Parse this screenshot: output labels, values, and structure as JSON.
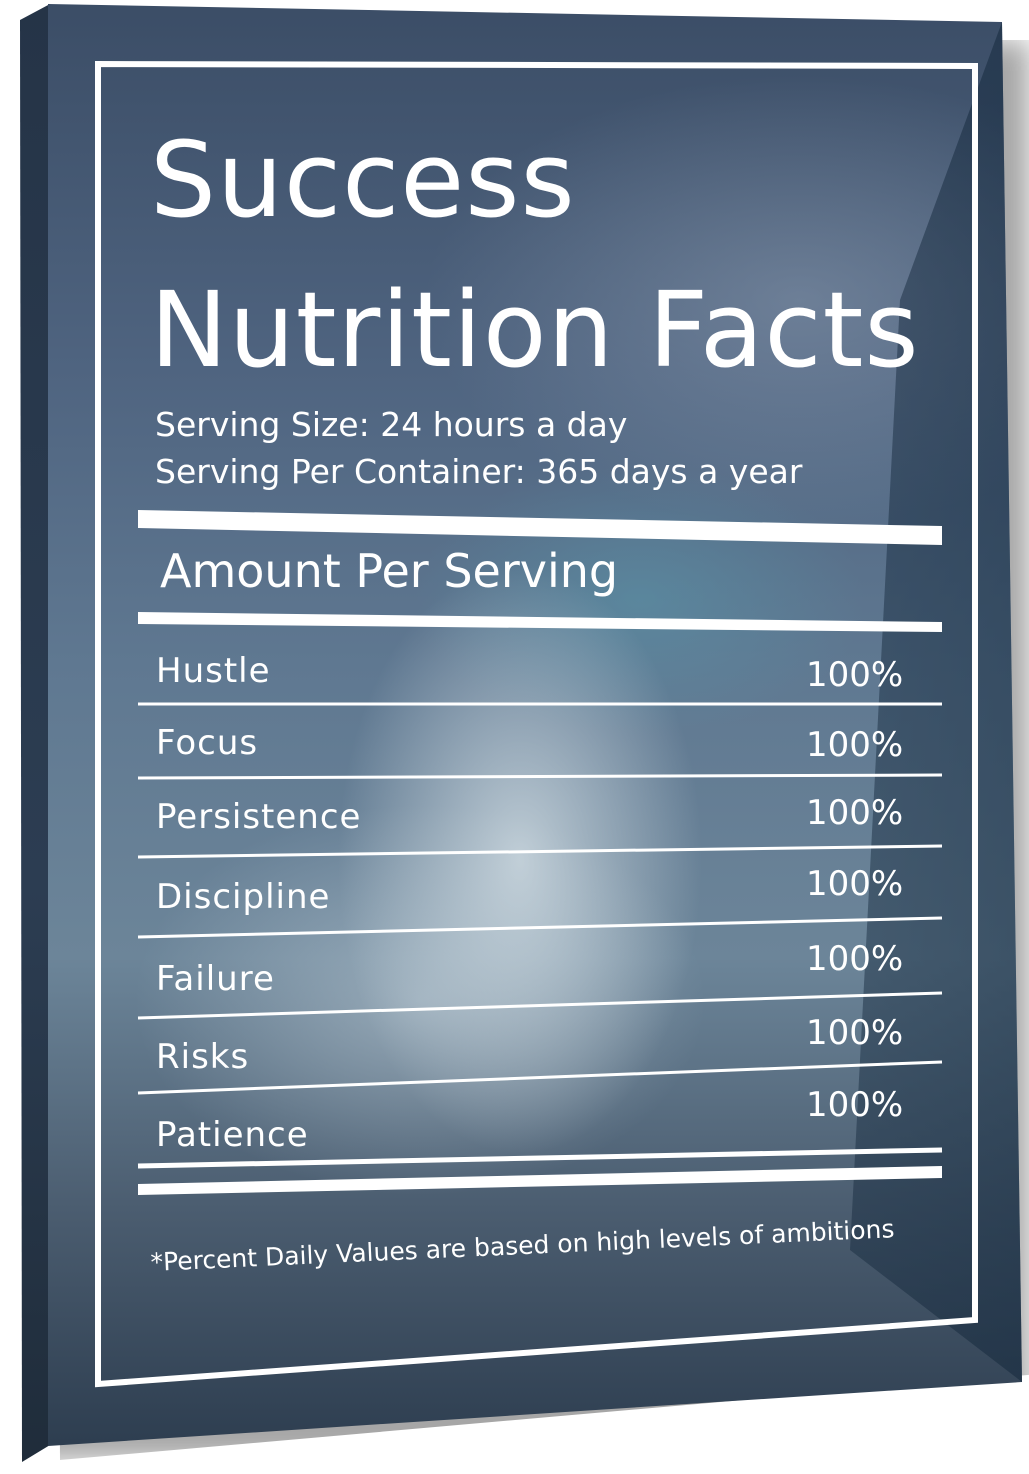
{
  "title_line1": "Success",
  "title_line2": "Nutrition Facts",
  "serving_size": "Serving Size: 24 hours a day",
  "serving_per_container": "Serving Per Container: 365 days a year",
  "amount_header": "Amount Per Serving",
  "rows": [
    {
      "label": "Hustle",
      "value": "100%"
    },
    {
      "label": "Focus",
      "value": "100%"
    },
    {
      "label": "Persistence",
      "value": "100%"
    },
    {
      "label": "Discipline",
      "value": "100%"
    },
    {
      "label": "Failure",
      "value": "100%"
    },
    {
      "label": "Risks",
      "value": "100%"
    },
    {
      "label": "Patience",
      "value": "100%"
    }
  ],
  "footnote": "*Percent Daily Values are based on high levels of ambitions",
  "colors": {
    "text": "#ffffff",
    "background": "#4f6480"
  }
}
